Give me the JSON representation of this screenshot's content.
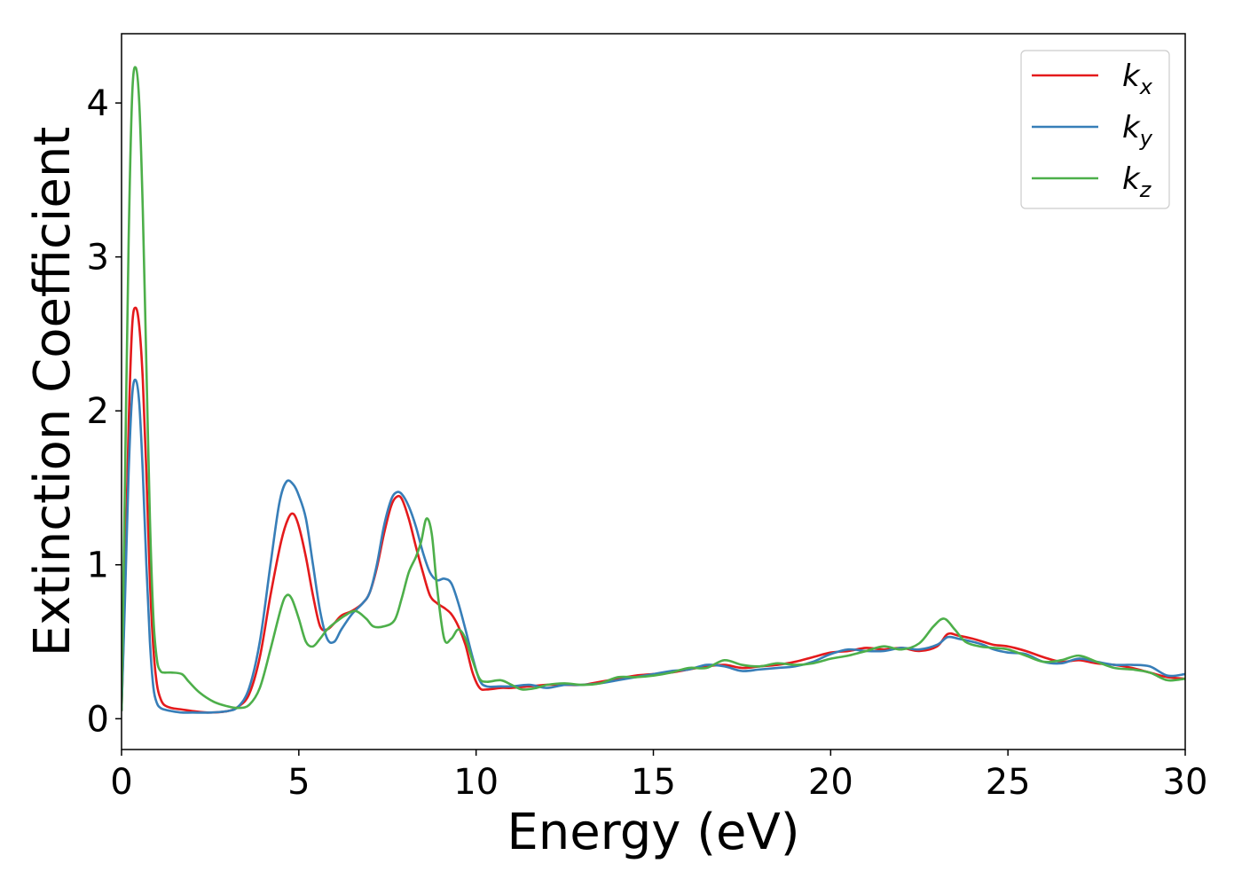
{
  "chart_data": {
    "type": "line",
    "xlabel": "Energy (eV)",
    "ylabel": "Extinction Coefficient",
    "xlim": [
      0,
      30
    ],
    "ylim": [
      -0.2,
      4.45
    ],
    "xticks": [
      0,
      5,
      10,
      15,
      20,
      25,
      30
    ],
    "yticks": [
      0,
      1,
      2,
      3,
      4
    ],
    "grid": false,
    "legend_position": "top-right",
    "series": [
      {
        "name": "k",
        "subscript": "x",
        "color": "#e41a1c",
        "x": [
          0,
          0.1,
          0.2,
          0.3,
          0.4,
          0.5,
          0.6,
          0.7,
          0.8,
          0.9,
          1.0,
          1.1,
          1.2,
          1.4,
          1.7,
          2.0,
          2.5,
          3.0,
          3.3,
          3.6,
          3.9,
          4.2,
          4.5,
          4.7,
          4.85,
          5.0,
          5.2,
          5.4,
          5.6,
          5.8,
          6.0,
          6.2,
          6.5,
          6.8,
          7.0,
          7.2,
          7.4,
          7.6,
          7.75,
          7.9,
          8.1,
          8.3,
          8.5,
          8.7,
          8.9,
          9.1,
          9.3,
          9.5,
          9.7,
          9.9,
          10.1,
          10.3,
          10.7,
          11.0,
          11.5,
          12.0,
          12.5,
          13.0,
          13.5,
          14.0,
          14.5,
          15.0,
          15.5,
          16.0,
          16.5,
          17.0,
          17.5,
          18.0,
          18.5,
          19.0,
          19.5,
          20.0,
          20.5,
          21.0,
          21.5,
          22.0,
          22.5,
          23.0,
          23.3,
          23.6,
          24.0,
          24.3,
          24.6,
          25.0,
          25.5,
          26.0,
          26.5,
          27.0,
          27.5,
          28.0,
          28.5,
          29.0,
          29.5,
          30.0
        ],
        "values": [
          0.05,
          0.9,
          1.9,
          2.55,
          2.67,
          2.55,
          2.2,
          1.6,
          0.9,
          0.45,
          0.22,
          0.13,
          0.09,
          0.07,
          0.06,
          0.05,
          0.04,
          0.05,
          0.08,
          0.16,
          0.4,
          0.8,
          1.15,
          1.3,
          1.33,
          1.25,
          1.05,
          0.8,
          0.6,
          0.58,
          0.62,
          0.67,
          0.7,
          0.75,
          0.82,
          0.98,
          1.2,
          1.38,
          1.44,
          1.43,
          1.3,
          1.12,
          0.95,
          0.8,
          0.75,
          0.72,
          0.68,
          0.6,
          0.48,
          0.3,
          0.2,
          0.19,
          0.2,
          0.2,
          0.21,
          0.22,
          0.22,
          0.22,
          0.24,
          0.26,
          0.28,
          0.29,
          0.3,
          0.32,
          0.34,
          0.35,
          0.33,
          0.34,
          0.35,
          0.37,
          0.4,
          0.43,
          0.44,
          0.46,
          0.45,
          0.46,
          0.44,
          0.47,
          0.55,
          0.54,
          0.52,
          0.5,
          0.48,
          0.47,
          0.44,
          0.4,
          0.37,
          0.38,
          0.36,
          0.35,
          0.33,
          0.3,
          0.27,
          0.26
        ]
      },
      {
        "name": "k",
        "subscript": "y",
        "color": "#377eb8",
        "x": [
          0,
          0.1,
          0.2,
          0.3,
          0.4,
          0.5,
          0.6,
          0.7,
          0.8,
          0.9,
          1.0,
          1.1,
          1.2,
          1.4,
          1.7,
          2.0,
          2.5,
          3.0,
          3.3,
          3.6,
          3.9,
          4.2,
          4.45,
          4.65,
          4.85,
          5.0,
          5.2,
          5.4,
          5.6,
          5.8,
          6.0,
          6.2,
          6.5,
          6.8,
          7.0,
          7.2,
          7.4,
          7.6,
          7.75,
          7.9,
          8.1,
          8.3,
          8.5,
          8.7,
          8.9,
          9.1,
          9.3,
          9.5,
          9.7,
          9.9,
          10.1,
          10.3,
          10.7,
          11.0,
          11.5,
          12.0,
          12.5,
          13.0,
          13.5,
          14.0,
          14.5,
          15.0,
          15.5,
          16.0,
          16.5,
          17.0,
          17.5,
          18.0,
          18.5,
          19.0,
          19.5,
          20.0,
          20.5,
          21.0,
          21.5,
          22.0,
          22.5,
          23.0,
          23.3,
          23.6,
          24.0,
          24.3,
          24.6,
          25.0,
          25.5,
          26.0,
          26.5,
          27.0,
          27.5,
          28.0,
          28.5,
          29.0,
          29.5,
          30.0
        ],
        "values": [
          0.05,
          0.8,
          1.6,
          2.1,
          2.2,
          2.05,
          1.6,
          1.0,
          0.5,
          0.2,
          0.1,
          0.07,
          0.06,
          0.05,
          0.04,
          0.04,
          0.04,
          0.05,
          0.08,
          0.2,
          0.5,
          1.0,
          1.4,
          1.54,
          1.52,
          1.45,
          1.3,
          1.0,
          0.7,
          0.52,
          0.5,
          0.58,
          0.68,
          0.75,
          0.82,
          1.0,
          1.25,
          1.42,
          1.47,
          1.46,
          1.38,
          1.25,
          1.08,
          0.95,
          0.9,
          0.91,
          0.88,
          0.75,
          0.58,
          0.4,
          0.25,
          0.21,
          0.21,
          0.21,
          0.22,
          0.2,
          0.22,
          0.22,
          0.23,
          0.25,
          0.27,
          0.29,
          0.31,
          0.32,
          0.35,
          0.34,
          0.31,
          0.32,
          0.33,
          0.34,
          0.37,
          0.42,
          0.45,
          0.44,
          0.44,
          0.46,
          0.45,
          0.48,
          0.53,
          0.52,
          0.5,
          0.48,
          0.45,
          0.43,
          0.42,
          0.37,
          0.36,
          0.39,
          0.37,
          0.35,
          0.35,
          0.34,
          0.28,
          0.29
        ]
      },
      {
        "name": "k",
        "subscript": "z",
        "color": "#4daf4a",
        "x": [
          0,
          0.1,
          0.2,
          0.3,
          0.4,
          0.5,
          0.6,
          0.7,
          0.8,
          0.9,
          1.0,
          1.1,
          1.2,
          1.4,
          1.7,
          1.9,
          2.2,
          2.6,
          3.0,
          3.3,
          3.6,
          3.9,
          4.2,
          4.5,
          4.65,
          4.8,
          5.0,
          5.2,
          5.4,
          5.6,
          5.8,
          6.0,
          6.3,
          6.6,
          6.9,
          7.1,
          7.4,
          7.7,
          7.9,
          8.1,
          8.3,
          8.45,
          8.6,
          8.75,
          8.9,
          9.1,
          9.3,
          9.5,
          9.7,
          9.9,
          10.1,
          10.3,
          10.7,
          11.0,
          11.3,
          11.7,
          12.0,
          12.5,
          13.0,
          13.5,
          14.0,
          14.5,
          15.0,
          15.5,
          16.0,
          16.5,
          17.0,
          17.5,
          18.0,
          18.5,
          19.0,
          19.5,
          20.0,
          20.5,
          21.0,
          21.5,
          22.0,
          22.5,
          22.9,
          23.2,
          23.5,
          23.8,
          24.2,
          24.6,
          25.0,
          25.5,
          26.0,
          26.5,
          27.0,
          27.5,
          28.0,
          28.5,
          29.0,
          29.5,
          30.0
        ],
        "values": [
          0.05,
          1.6,
          3.1,
          4.05,
          4.23,
          4.0,
          3.3,
          2.3,
          1.3,
          0.65,
          0.38,
          0.31,
          0.3,
          0.3,
          0.29,
          0.24,
          0.17,
          0.11,
          0.08,
          0.07,
          0.09,
          0.2,
          0.45,
          0.72,
          0.8,
          0.78,
          0.65,
          0.5,
          0.47,
          0.52,
          0.58,
          0.62,
          0.67,
          0.7,
          0.65,
          0.6,
          0.6,
          0.64,
          0.78,
          0.95,
          1.05,
          1.15,
          1.3,
          1.2,
          0.85,
          0.52,
          0.52,
          0.58,
          0.52,
          0.38,
          0.26,
          0.24,
          0.25,
          0.22,
          0.19,
          0.2,
          0.22,
          0.23,
          0.22,
          0.23,
          0.27,
          0.27,
          0.28,
          0.3,
          0.33,
          0.33,
          0.38,
          0.35,
          0.34,
          0.36,
          0.35,
          0.36,
          0.39,
          0.41,
          0.44,
          0.47,
          0.45,
          0.49,
          0.6,
          0.65,
          0.58,
          0.5,
          0.47,
          0.46,
          0.45,
          0.41,
          0.37,
          0.38,
          0.41,
          0.37,
          0.33,
          0.32,
          0.3,
          0.25,
          0.26
        ]
      }
    ]
  }
}
